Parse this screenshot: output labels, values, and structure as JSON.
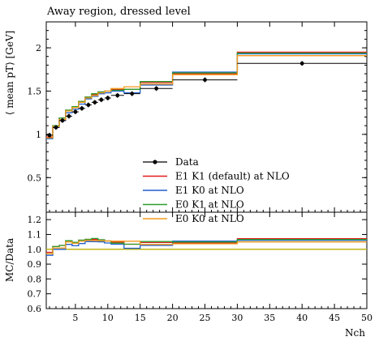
{
  "chart_data": {
    "type": "line",
    "title": "Away region, dressed level",
    "top_panel": {
      "ylabel": "⟨ mean pT⟩ [GeV]",
      "ylim": [
        0.1,
        2.3
      ],
      "yticks": [
        0.5,
        1,
        1.5,
        2
      ],
      "ytick_labels": [
        "0.5",
        "1",
        "1.5",
        "2"
      ]
    },
    "ratio_panel": {
      "ylabel": "MC/Data",
      "ylim": [
        0.6,
        1.25
      ],
      "yticks": [
        0.6,
        0.7,
        0.8,
        0.9,
        1.0,
        1.1,
        1.2
      ],
      "ytick_labels": [
        "0.6",
        "0.7",
        "0.8",
        "0.9",
        "1.0",
        "1.1",
        "1.2"
      ]
    },
    "xlabel": "Nch",
    "xlim": [
      0.5,
      50
    ],
    "xticks": [
      5,
      10,
      15,
      20,
      25,
      30,
      35,
      40,
      45,
      50
    ],
    "xtick_labels": [
      "5",
      "10",
      "15",
      "20",
      "25",
      "30",
      "35",
      "40",
      "45",
      "50"
    ],
    "bin_edges": [
      0.5,
      1.5,
      2.5,
      3.5,
      4.5,
      5.5,
      6.5,
      7.5,
      8.5,
      9.5,
      10.5,
      12.5,
      15,
      20,
      30,
      50
    ],
    "data_points": {
      "name": "Data",
      "x": [
        1,
        2,
        3,
        4,
        5,
        6,
        7,
        8,
        9,
        10,
        11.5,
        13.75,
        17.5,
        25,
        40
      ],
      "y": [
        0.99,
        1.08,
        1.16,
        1.21,
        1.26,
        1.3,
        1.34,
        1.37,
        1.4,
        1.42,
        1.45,
        1.47,
        1.53,
        1.63,
        1.82
      ]
    },
    "series": [
      {
        "name": "E1 K1 (default) at NLO",
        "color": "#e41a1c",
        "values": [
          0.97,
          1.1,
          1.19,
          1.28,
          1.32,
          1.38,
          1.43,
          1.46,
          1.49,
          1.5,
          1.52,
          1.52,
          1.6,
          1.7,
          1.95
        ]
      },
      {
        "name": "E1 K0 at NLO",
        "color": "#1f5fcf",
        "values": [
          0.95,
          1.08,
          1.16,
          1.25,
          1.29,
          1.35,
          1.41,
          1.44,
          1.47,
          1.48,
          1.5,
          1.48,
          1.57,
          1.72,
          1.93
        ]
      },
      {
        "name": "E0 K1 at NLO",
        "color": "#2ca02c",
        "values": [
          0.96,
          1.1,
          1.19,
          1.28,
          1.32,
          1.38,
          1.43,
          1.47,
          1.49,
          1.5,
          1.51,
          1.52,
          1.61,
          1.71,
          1.94
        ]
      },
      {
        "name": "E0 K0 at NLO",
        "color": "#f39a1c",
        "values": [
          0.96,
          1.09,
          1.17,
          1.27,
          1.31,
          1.37,
          1.42,
          1.45,
          1.48,
          1.5,
          1.53,
          1.55,
          1.58,
          1.69,
          1.91
        ]
      }
    ],
    "legend": "center",
    "grid": false
  }
}
